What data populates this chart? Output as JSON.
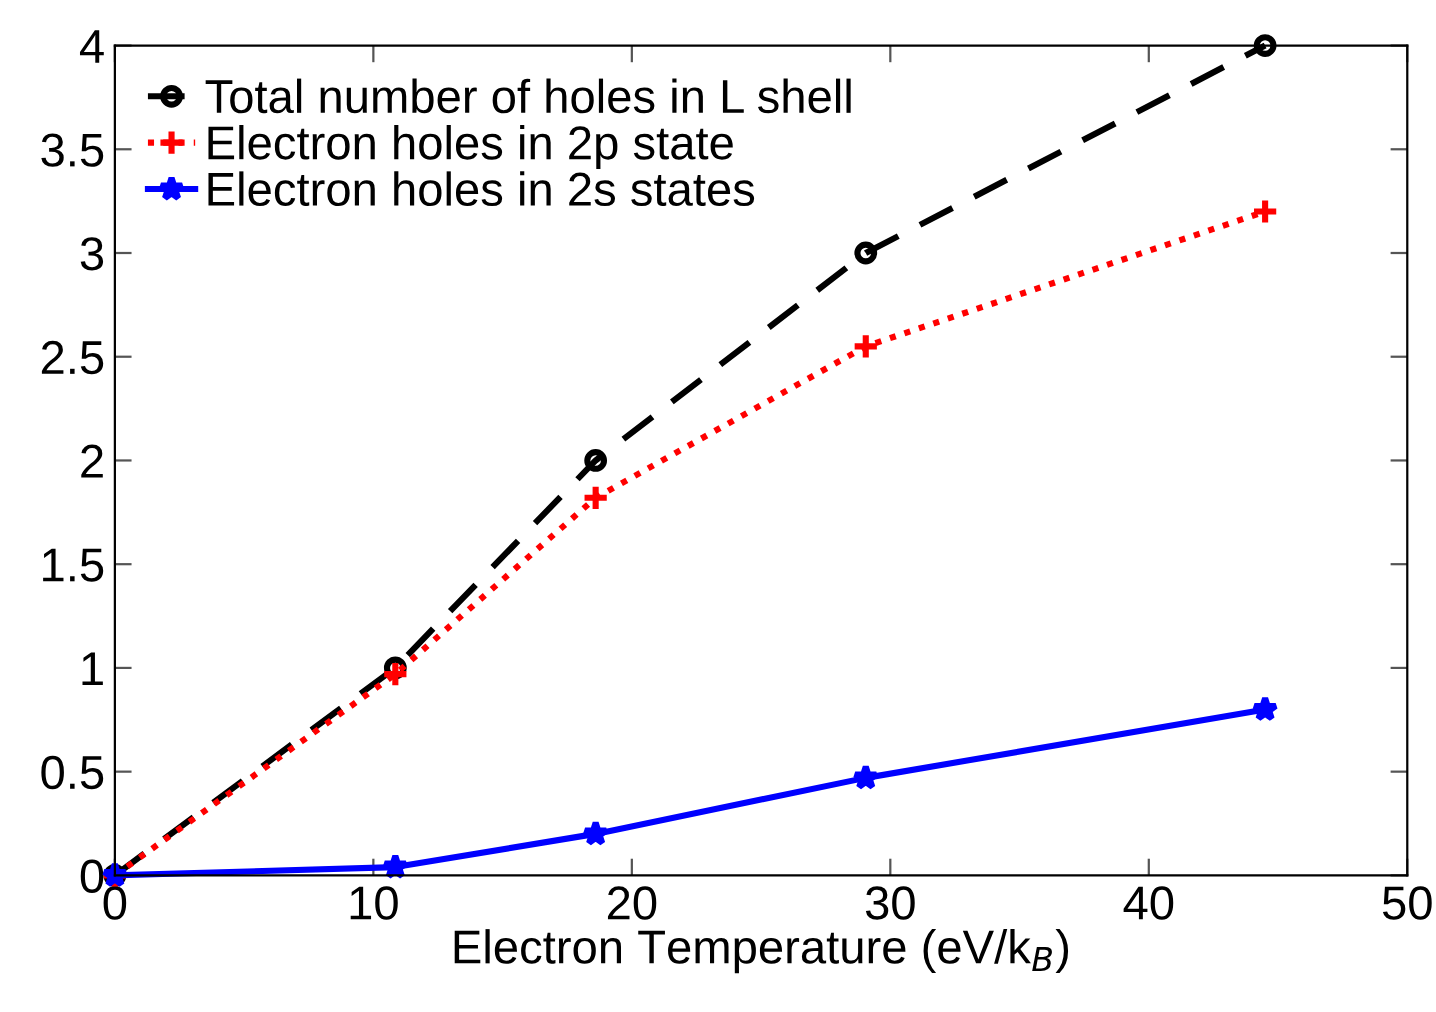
{
  "chart_data": {
    "type": "line",
    "xlabel": "Electron Temperature (eV/k$_{B}$)",
    "x": [
      0,
      10.85,
      18.6,
      29.05,
      44.5
    ],
    "series": [
      {
        "name": "Total number of holes in L shell",
        "color": "#000000",
        "values": [
          0,
          1,
          2,
          3,
          4
        ],
        "marker": "circle",
        "line_style": "dashed"
      },
      {
        "name": "Electron holes in 2p state",
        "color": "#ff0000",
        "values": [
          0,
          0.97,
          1.82,
          2.55,
          3.2
        ],
        "marker": "plus",
        "line_style": "dotted"
      },
      {
        "name": "Electron holes in 2s states",
        "color": "#0000ff",
        "values": [
          0,
          0.04,
          0.2,
          0.47,
          0.8
        ],
        "marker": "star",
        "line_style": "solid"
      }
    ],
    "xlim": [
      0,
      50
    ],
    "xticks": [
      0,
      10,
      20,
      30,
      40,
      50
    ],
    "ylim": [
      0,
      4
    ],
    "yticks": [
      0,
      0.5,
      1,
      1.5,
      2,
      2.5,
      3,
      3.5,
      4
    ],
    "grid": false,
    "legend": "top left"
  }
}
